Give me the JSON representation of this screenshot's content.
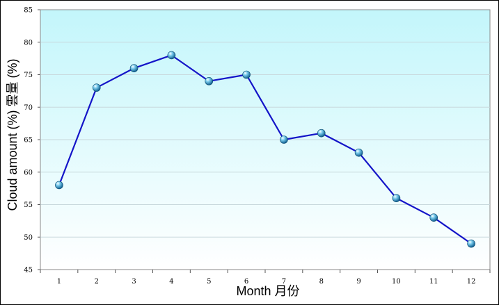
{
  "chart_data": {
    "type": "line",
    "title": "",
    "xlabel": "Month 月份",
    "ylabel": "Cloud amount (%)  雲量 (%)",
    "categories": [
      "1",
      "2",
      "3",
      "4",
      "5",
      "6",
      "7",
      "8",
      "9",
      "10",
      "11",
      "12"
    ],
    "series": [
      {
        "values": [
          58,
          73,
          76,
          78,
          74,
          75,
          65,
          66,
          63,
          56,
          53,
          49
        ]
      }
    ],
    "ylim": [
      45,
      85
    ],
    "yticks": [
      45,
      50,
      55,
      60,
      65,
      70,
      75,
      80,
      85
    ],
    "grid": true,
    "legend": "none",
    "colors": {
      "line": "#1414c8",
      "marker": "#3aa0d8",
      "plot_top": "#c3f6fb",
      "plot_bottom": "#ffffff",
      "grid": "#c8d8dc"
    }
  }
}
